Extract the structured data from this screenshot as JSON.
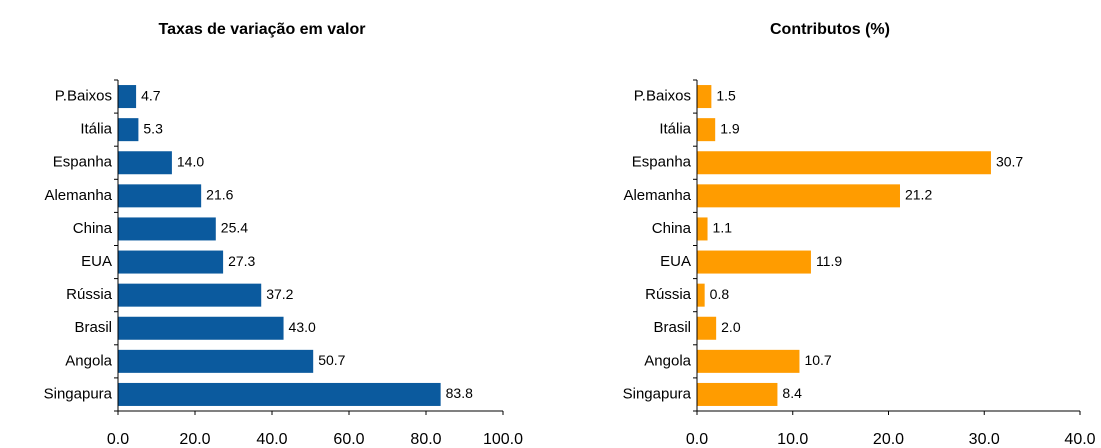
{
  "chart_data": [
    {
      "type": "bar",
      "orientation": "horizontal",
      "title": "Taxas de variação em valor",
      "categories": [
        "P.Baixos",
        "Itália",
        "Espanha",
        "Alemanha",
        "China",
        "EUA",
        "Rússia",
        "Brasil",
        "Angola",
        "Singapura"
      ],
      "values": [
        4.7,
        5.3,
        14.0,
        21.6,
        25.4,
        27.3,
        37.2,
        43.0,
        50.7,
        83.8
      ],
      "value_labels": [
        "4.7",
        "5.3",
        "14.0",
        "21.6",
        "25.4",
        "27.3",
        "37.2",
        "43.0",
        "50.7",
        "83.8"
      ],
      "color": "#0b5a9e",
      "xlim": [
        0,
        100
      ],
      "xticks": [
        {
          "value": 0,
          "label": "0.0"
        },
        {
          "value": 20,
          "label": "20.0"
        },
        {
          "value": 40,
          "label": "40.0"
        },
        {
          "value": 60,
          "label": "60.0"
        },
        {
          "value": 80,
          "label": "80.0"
        },
        {
          "value": 100,
          "label": "100.0"
        }
      ]
    },
    {
      "type": "bar",
      "orientation": "horizontal",
      "title": "Contributos (%)",
      "categories": [
        "P.Baixos",
        "Itália",
        "Espanha",
        "Alemanha",
        "China",
        "EUA",
        "Rússia",
        "Brasil",
        "Angola",
        "Singapura"
      ],
      "values": [
        1.5,
        1.9,
        30.7,
        21.2,
        1.1,
        11.9,
        0.8,
        2.0,
        10.7,
        8.4
      ],
      "value_labels": [
        "1.5",
        "1.9",
        "30.7",
        "21.2",
        "1.1",
        "11.9",
        "0.8",
        "2.0",
        "10.7",
        "8.4"
      ],
      "color": "#ff9c00",
      "xlim": [
        0,
        40
      ],
      "xticks": [
        {
          "value": 0,
          "label": "0.0"
        },
        {
          "value": 10,
          "label": "10.0"
        },
        {
          "value": 20,
          "label": "20.0"
        },
        {
          "value": 30,
          "label": "30.0"
        },
        {
          "value": 40,
          "label": "40.0"
        }
      ]
    }
  ]
}
